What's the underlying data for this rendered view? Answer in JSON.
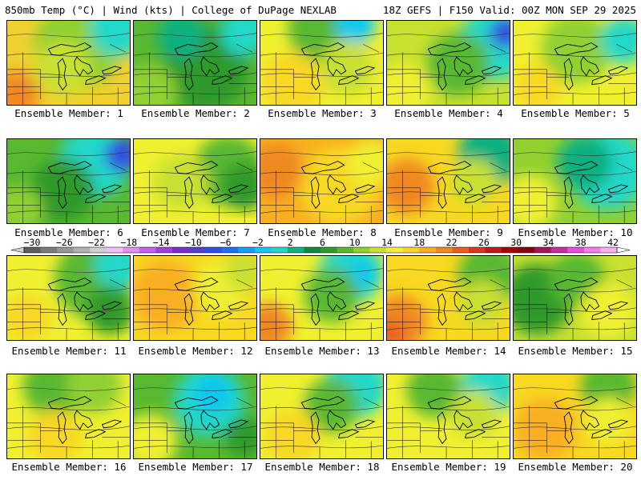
{
  "header": {
    "left": "850mb Temp (°C) | Wind (kts) | College of DuPage NEXLAB",
    "right": "18Z GEFS | F150 Valid: 00Z MON SEP 29 2025"
  },
  "colorbar": {
    "labels": [
      "−30",
      "−26",
      "−22",
      "−18",
      "−14",
      "−10",
      "−6",
      "−2",
      "2",
      "6",
      "10",
      "14",
      "18",
      "22",
      "26",
      "30",
      "34",
      "38",
      "42"
    ],
    "colors": [
      "#5e5e5e",
      "#7a7a7a",
      "#959595",
      "#b0b0b0",
      "#cfcfcf",
      "#f0c0f8",
      "#e090f0",
      "#c860e8",
      "#a040d8",
      "#7a30c8",
      "#5540c8",
      "#3050e0",
      "#2070f0",
      "#10a0f8",
      "#10c8f0",
      "#20d8c8",
      "#10b080",
      "#108840",
      "#2e9a2a",
      "#58b830",
      "#90d030",
      "#c8e030",
      "#f0f030",
      "#f8d820",
      "#f8b020",
      "#f08820",
      "#e86020",
      "#d83820",
      "#c01818",
      "#a00808",
      "#880010",
      "#a01858",
      "#c030a0",
      "#e050d8",
      "#f080e8",
      "#f8b0f0"
    ]
  },
  "panels": [
    {
      "label": "Ensemble Member: 1",
      "base": "#f0d030",
      "blobs": [
        {
          "c": "#90d030",
          "x": 90,
          "y": 30,
          "r": 55
        },
        {
          "c": "#20d8c8",
          "x": 140,
          "y": 10,
          "r": 35
        },
        {
          "c": "#f08820",
          "x": 10,
          "y": 95,
          "r": 30
        },
        {
          "c": "#c8e030",
          "x": 70,
          "y": 60,
          "r": 35
        }
      ]
    },
    {
      "label": "Ensemble Member: 2",
      "base": "#58b830",
      "blobs": [
        {
          "c": "#2e9a2a",
          "x": 90,
          "y": 60,
          "r": 55
        },
        {
          "c": "#90d030",
          "x": 20,
          "y": 90,
          "r": 35
        },
        {
          "c": "#20d8c8",
          "x": 140,
          "y": 15,
          "r": 30
        },
        {
          "c": "#10b080",
          "x": 60,
          "y": 20,
          "r": 30
        }
      ]
    },
    {
      "label": "Ensemble Member: 3",
      "base": "#f0f030",
      "blobs": [
        {
          "c": "#58b830",
          "x": 80,
          "y": 10,
          "r": 45
        },
        {
          "c": "#10c8f0",
          "x": 120,
          "y": 5,
          "r": 25
        },
        {
          "c": "#f8d820",
          "x": 40,
          "y": 80,
          "r": 40
        },
        {
          "c": "#c8e030",
          "x": 110,
          "y": 60,
          "r": 35
        }
      ]
    },
    {
      "label": "Ensemble Member: 4",
      "base": "#c8e030",
      "blobs": [
        {
          "c": "#20d8c8",
          "x": 135,
          "y": 30,
          "r": 45
        },
        {
          "c": "#3050e0",
          "x": 150,
          "y": 15,
          "r": 20
        },
        {
          "c": "#58b830",
          "x": 90,
          "y": 55,
          "r": 40
        },
        {
          "c": "#f0f030",
          "x": 20,
          "y": 90,
          "r": 35
        }
      ]
    },
    {
      "label": "Ensemble Member: 5",
      "base": "#f0f030",
      "blobs": [
        {
          "c": "#90d030",
          "x": 80,
          "y": 35,
          "r": 45
        },
        {
          "c": "#20d8c8",
          "x": 140,
          "y": 25,
          "r": 30
        },
        {
          "c": "#f8d820",
          "x": 30,
          "y": 85,
          "r": 30
        }
      ]
    },
    {
      "label": "Ensemble Member: 6",
      "base": "#58b830",
      "blobs": [
        {
          "c": "#20d8c8",
          "x": 110,
          "y": 30,
          "r": 45
        },
        {
          "c": "#3050e0",
          "x": 145,
          "y": 20,
          "r": 22
        },
        {
          "c": "#2e9a2a",
          "x": 70,
          "y": 65,
          "r": 40
        },
        {
          "c": "#90d030",
          "x": 15,
          "y": 90,
          "r": 30
        }
      ]
    },
    {
      "label": "Ensemble Member: 7",
      "base": "#f0f030",
      "blobs": [
        {
          "c": "#58b830",
          "x": 120,
          "y": 40,
          "r": 45
        },
        {
          "c": "#2e9a2a",
          "x": 140,
          "y": 60,
          "r": 30
        },
        {
          "c": "#c8e030",
          "x": 60,
          "y": 55,
          "r": 35
        }
      ]
    },
    {
      "label": "Ensemble Member: 8",
      "base": "#f8b020",
      "blobs": [
        {
          "c": "#f8d820",
          "x": 100,
          "y": 60,
          "r": 50
        },
        {
          "c": "#f08820",
          "x": 20,
          "y": 40,
          "r": 35
        },
        {
          "c": "#f0f030",
          "x": 140,
          "y": 30,
          "r": 30
        }
      ]
    },
    {
      "label": "Ensemble Member: 9",
      "base": "#f8d820",
      "blobs": [
        {
          "c": "#10b080",
          "x": 130,
          "y": 20,
          "r": 40
        },
        {
          "c": "#f08820",
          "x": 25,
          "y": 60,
          "r": 35
        },
        {
          "c": "#c8e030",
          "x": 110,
          "y": 55,
          "r": 30
        }
      ]
    },
    {
      "label": "Ensemble Member: 10",
      "base": "#90d030",
      "blobs": [
        {
          "c": "#20d8c8",
          "x": 120,
          "y": 40,
          "r": 50
        },
        {
          "c": "#10b080",
          "x": 90,
          "y": 30,
          "r": 35
        },
        {
          "c": "#f0f030",
          "x": 20,
          "y": 80,
          "r": 35
        }
      ]
    },
    {
      "label": "Ensemble Member: 11",
      "base": "#f0f030",
      "blobs": [
        {
          "c": "#58b830",
          "x": 110,
          "y": 30,
          "r": 50
        },
        {
          "c": "#20d8c8",
          "x": 140,
          "y": 10,
          "r": 30
        },
        {
          "c": "#2e9a2a",
          "x": 130,
          "y": 70,
          "r": 30
        },
        {
          "c": "#f8d820",
          "x": 25,
          "y": 80,
          "r": 30
        }
      ]
    },
    {
      "label": "Ensemble Member: 12",
      "base": "#f8d820",
      "blobs": [
        {
          "c": "#f8b020",
          "x": 40,
          "y": 50,
          "r": 45
        },
        {
          "c": "#f0f030",
          "x": 110,
          "y": 40,
          "r": 35
        },
        {
          "c": "#c8e030",
          "x": 140,
          "y": 20,
          "r": 25
        }
      ]
    },
    {
      "label": "Ensemble Member: 13",
      "base": "#f0f030",
      "blobs": [
        {
          "c": "#20d8c8",
          "x": 115,
          "y": 20,
          "r": 40
        },
        {
          "c": "#10c8f0",
          "x": 125,
          "y": 25,
          "r": 20
        },
        {
          "c": "#58b830",
          "x": 90,
          "y": 50,
          "r": 35
        },
        {
          "c": "#f08820",
          "x": 10,
          "y": 90,
          "r": 30
        }
      ]
    },
    {
      "label": "Ensemble Member: 14",
      "base": "#f8d820",
      "blobs": [
        {
          "c": "#58b830",
          "x": 130,
          "y": 25,
          "r": 40
        },
        {
          "c": "#f08820",
          "x": 15,
          "y": 85,
          "r": 35
        },
        {
          "c": "#e86020",
          "x": 5,
          "y": 100,
          "r": 18
        },
        {
          "c": "#c8e030",
          "x": 120,
          "y": 60,
          "r": 30
        }
      ]
    },
    {
      "label": "Ensemble Member: 15",
      "base": "#c8e030",
      "blobs": [
        {
          "c": "#2e9a2a",
          "x": 30,
          "y": 55,
          "r": 45
        },
        {
          "c": "#58b830",
          "x": 80,
          "y": 30,
          "r": 35
        },
        {
          "c": "#f0f030",
          "x": 120,
          "y": 70,
          "r": 35
        }
      ]
    },
    {
      "label": "Ensemble Member: 16",
      "base": "#f0f030",
      "blobs": [
        {
          "c": "#58b830",
          "x": 60,
          "y": 15,
          "r": 40
        },
        {
          "c": "#90d030",
          "x": 110,
          "y": 15,
          "r": 35
        },
        {
          "c": "#f8d820",
          "x": 60,
          "y": 80,
          "r": 35
        }
      ]
    },
    {
      "label": "Ensemble Member: 17",
      "base": "#58b830",
      "blobs": [
        {
          "c": "#20d8c8",
          "x": 95,
          "y": 35,
          "r": 45
        },
        {
          "c": "#10c8f0",
          "x": 100,
          "y": 25,
          "r": 25
        },
        {
          "c": "#f0f030",
          "x": 20,
          "y": 85,
          "r": 35
        },
        {
          "c": "#2e9a2a",
          "x": 140,
          "y": 80,
          "r": 25
        }
      ]
    },
    {
      "label": "Ensemble Member: 18",
      "base": "#f0f030",
      "blobs": [
        {
          "c": "#20d8c8",
          "x": 120,
          "y": 15,
          "r": 40
        },
        {
          "c": "#58b830",
          "x": 90,
          "y": 40,
          "r": 35
        },
        {
          "c": "#f8d820",
          "x": 40,
          "y": 80,
          "r": 35
        }
      ]
    },
    {
      "label": "Ensemble Member: 19",
      "base": "#f0f030",
      "blobs": [
        {
          "c": "#20d8c8",
          "x": 130,
          "y": 15,
          "r": 35
        },
        {
          "c": "#58b830",
          "x": 60,
          "y": 20,
          "r": 35
        },
        {
          "c": "#c8e030",
          "x": 110,
          "y": 50,
          "r": 30
        }
      ]
    },
    {
      "label": "Ensemble Member: 20",
      "base": "#f8d820",
      "blobs": [
        {
          "c": "#f8b020",
          "x": 40,
          "y": 70,
          "r": 40
        },
        {
          "c": "#58b830",
          "x": 120,
          "y": 15,
          "r": 35
        },
        {
          "c": "#f0f030",
          "x": 120,
          "y": 60,
          "r": 30
        }
      ]
    }
  ]
}
